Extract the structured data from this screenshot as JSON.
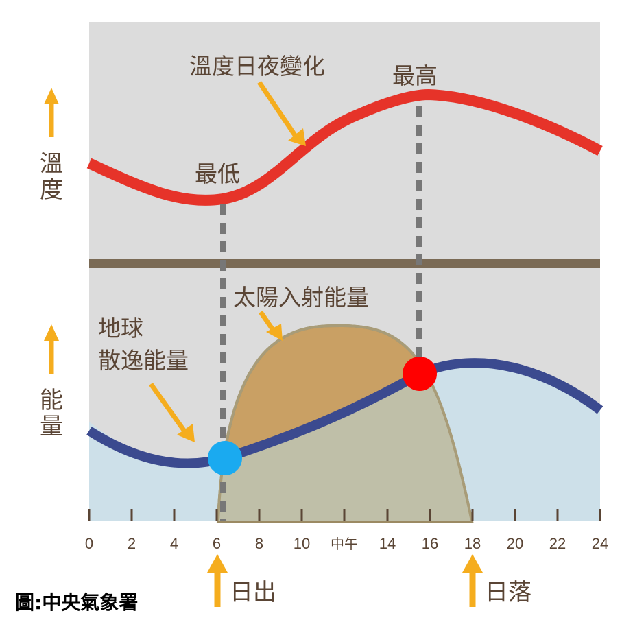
{
  "axis_labels": {
    "temperature": [
      "溫",
      "度"
    ],
    "energy": [
      "能",
      "量"
    ]
  },
  "annotations": {
    "temp_curve_label": "溫度日夜變化",
    "max_label": "最高",
    "min_label": "最低",
    "solar_label": "太陽入射能量",
    "earth_label_line1": "地球",
    "earth_label_line2": "散逸能量"
  },
  "x_axis": {
    "ticks": [
      "0",
      "2",
      "4",
      "6",
      "8",
      "10",
      "中午",
      "14",
      "16",
      "18",
      "20",
      "22",
      "24"
    ]
  },
  "events": {
    "sunrise": "日出",
    "sunset": "日落"
  },
  "credit": "圖:中央氣象署",
  "colors": {
    "background_panel": "#dcdcdc",
    "temperature_curve": "#e63329",
    "earth_energy_curve": "#3b4a8f",
    "earth_energy_fill": "#cde0e9",
    "solar_fill": "#c9a064",
    "overlap_fill": "#bfbfa8",
    "divider": "#7a6a55",
    "arrow": "#f5ad1e",
    "min_marker": "#1aaaf0",
    "max_marker": "#ff0000",
    "dashed_line": "#777777"
  }
}
